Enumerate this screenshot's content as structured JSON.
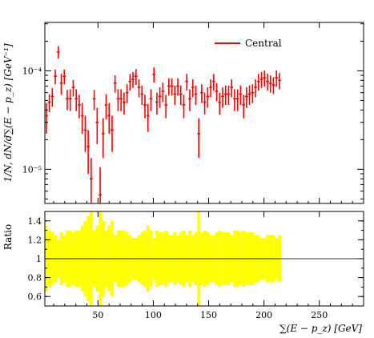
{
  "chart_data": [
    {
      "type": "scatter",
      "panel": "main",
      "ylabel": "1/N, dN/d∑(E − p_z) [GeV⁻¹]",
      "yscale": "log",
      "ylim": [
        4.5e-06,
        0.00031
      ],
      "xlim": [
        2,
        290
      ],
      "ytick_labels": [
        "10⁻⁵",
        "10⁻⁴"
      ],
      "ytick_values": [
        1e-05,
        0.0001
      ],
      "legend_position": "top-right",
      "series": [
        {
          "name": "Central",
          "color": "#ff0000",
          "x_step": 2.7,
          "x_start": 3.35,
          "values": [
            3.5e-05,
            4.8e-05,
            5.5e-05,
            8.8e-05,
            0.000155,
            7.5e-05,
            8.8e-05,
            5.2e-05,
            5.2e-05,
            6.8e-05,
            5.2e-05,
            4.5e-05,
            3.5e-05,
            2.5e-05,
            1.7e-05,
            8e-06,
            5.2e-05,
            3e-05,
            5.5e-06,
            2.3e-05,
            4.5e-05,
            3.5e-05,
            2.5e-05,
            7.5e-05,
            5.2e-05,
            5.2e-05,
            4.8e-05,
            6e-05,
            7.8e-05,
            8.2e-05,
            8.8e-05,
            6.8e-05,
            5.8e-05,
            4.5e-05,
            3.5e-05,
            5.2e-05,
            9.2e-05,
            4.8e-05,
            5.5e-05,
            6.2e-05,
            4.5e-05,
            7e-05,
            7e-05,
            5.8e-05,
            7e-05,
            5.8e-05,
            4.5e-05,
            7.8e-05,
            5.2e-05,
            6.8e-05,
            5.8e-05,
            2.3e-05,
            6e-05,
            4.8e-05,
            5.5e-05,
            6.8e-05,
            7.8e-05,
            6.2e-05,
            4.8e-05,
            5.5e-05,
            5.8e-05,
            5.8e-05,
            6.8e-05,
            5.2e-05,
            5.2e-05,
            5.8e-05,
            4.5e-05,
            5.5e-05,
            5.8e-05,
            6e-05,
            6.8e-05,
            7.8e-05,
            8.2e-05,
            8.5e-05,
            7.8e-05,
            7.5e-05,
            7.2e-05,
            8.5e-05,
            8e-05
          ],
          "errors": [
            1.2e-05,
            1e-05,
            1.2e-05,
            1.5e-05,
            2.2e-05,
            1.8e-05,
            1.5e-05,
            1.2e-05,
            1.3e-05,
            1.3e-05,
            1.3e-05,
            1.2e-05,
            1.2e-05,
            1e-05,
            8e-06,
            5e-06,
            1.2e-05,
            1.2e-05,
            5e-06,
            1e-05,
            1.3e-05,
            1.2e-05,
            1e-05,
            1.5e-05,
            1.3e-05,
            1.3e-05,
            1.2e-05,
            1.3e-05,
            1.5e-05,
            1.5e-05,
            1.6e-05,
            1.4e-05,
            1.3e-05,
            1.2e-05,
            1.1e-05,
            1.3e-05,
            1.6e-05,
            1.2e-05,
            1.3e-05,
            1.4e-05,
            1.2e-05,
            1.4e-05,
            1.4e-05,
            1.3e-05,
            1.4e-05,
            1.3e-05,
            1.2e-05,
            1.5e-05,
            1.3e-05,
            1.4e-05,
            1.3e-05,
            1e-05,
            1.3e-05,
            1.2e-05,
            1.3e-05,
            1.4e-05,
            1.5e-05,
            1.3e-05,
            1.2e-05,
            1.3e-05,
            1.3e-05,
            1.3e-05,
            1.4e-05,
            1.3e-05,
            1.3e-05,
            1.3e-05,
            1.2e-05,
            1.3e-05,
            1.3e-05,
            1.3e-05,
            1.4e-05,
            1.5e-05,
            1.5e-05,
            1.6e-05,
            1.5e-05,
            1.5e-05,
            1.4e-05,
            1.6e-05,
            1.5e-05
          ]
        }
      ]
    },
    {
      "type": "bar",
      "panel": "ratio",
      "ylabel": "Ratio",
      "xlabel": "∑(E − p_z) [GeV]",
      "xlim": [
        2,
        290
      ],
      "ylim": [
        0.5,
        1.5
      ],
      "ytick_labels": [
        "0.6",
        "0.8",
        "1",
        "1.2",
        "1.4"
      ],
      "ytick_values": [
        0.6,
        0.8,
        1.0,
        1.2,
        1.4
      ],
      "xtick_labels": [
        "50",
        "100",
        "150",
        "200",
        "250"
      ],
      "xtick_values": [
        50,
        100,
        150,
        200,
        250
      ],
      "band_color": "#ffff00",
      "reference_line": 1.0,
      "band_half_widths": [
        0.35,
        0.3,
        0.28,
        0.25,
        0.2,
        0.28,
        0.25,
        0.3,
        0.3,
        0.28,
        0.3,
        0.3,
        0.35,
        0.4,
        0.45,
        0.5,
        0.3,
        0.35,
        0.5,
        0.4,
        0.3,
        0.35,
        0.4,
        0.25,
        0.3,
        0.3,
        0.3,
        0.28,
        0.25,
        0.22,
        0.22,
        0.25,
        0.28,
        0.3,
        0.35,
        0.3,
        0.22,
        0.3,
        0.28,
        0.28,
        0.3,
        0.25,
        0.25,
        0.28,
        0.25,
        0.28,
        0.3,
        0.25,
        0.3,
        0.25,
        0.28,
        0.5,
        0.28,
        0.3,
        0.28,
        0.25,
        0.25,
        0.28,
        0.3,
        0.28,
        0.28,
        0.28,
        0.25,
        0.3,
        0.3,
        0.28,
        0.3,
        0.28,
        0.28,
        0.28,
        0.25,
        0.25,
        0.22,
        0.22,
        0.25,
        0.25,
        0.25,
        0.22,
        0.25
      ]
    }
  ]
}
